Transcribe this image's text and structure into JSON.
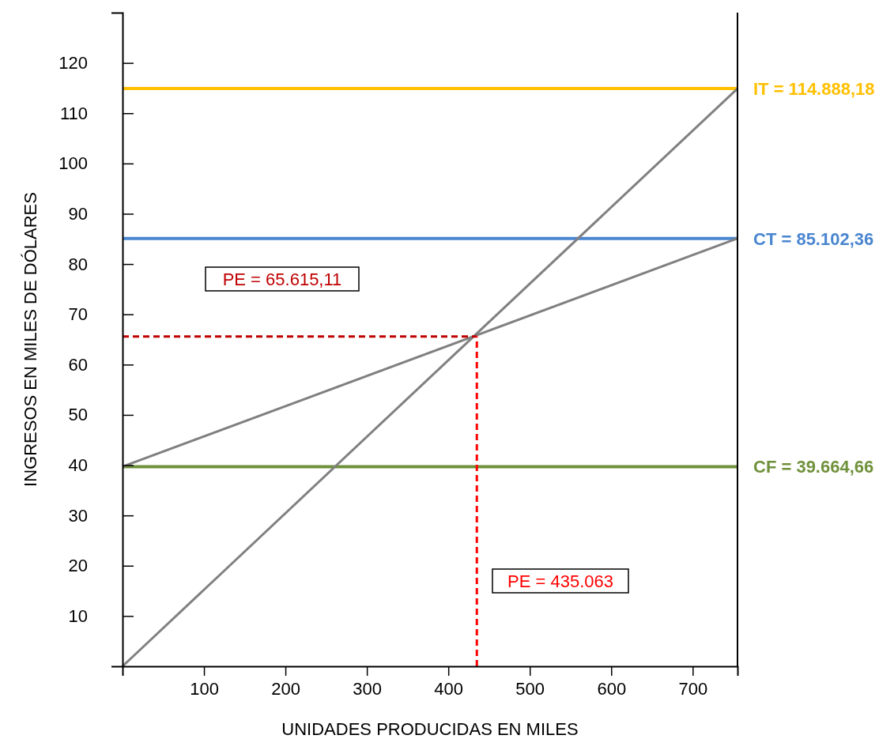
{
  "chart_data": {
    "type": "line",
    "xlabel": "UNIDADES PRODUCIDAS EN MILES",
    "ylabel": "INGRESOS EN MILES DE DÓLARES",
    "xlim": [
      0,
      755
    ],
    "ylim": [
      0,
      130
    ],
    "xticks": [
      100,
      200,
      300,
      400,
      500,
      600,
      700
    ],
    "yticks": [
      10,
      20,
      30,
      40,
      50,
      60,
      70,
      80,
      90,
      100,
      110,
      120
    ],
    "grid": false,
    "marker": "none",
    "series": [
      {
        "color": "#808080",
        "x": [
          0,
          755
        ],
        "values": [
          0,
          114.9
        ]
      },
      {
        "color": "#808080",
        "x": [
          0,
          755
        ],
        "values": [
          39.7,
          85.1
        ]
      },
      {
        "color": "#c00000",
        "x": [
          0,
          435
        ],
        "values": [
          65.6,
          65.6
        ],
        "line_style": "dashed"
      },
      {
        "color": "#ff0000",
        "x": [
          435,
          435
        ],
        "values": [
          0,
          65.6
        ],
        "line_style": "dashed"
      }
    ],
    "ref_lines": [
      {
        "axis": "y",
        "value": 114.9,
        "color": "#ffc000"
      },
      {
        "axis": "y",
        "value": 85.1,
        "color": "#4a86d0"
      },
      {
        "axis": "y",
        "value": 39.7,
        "color": "#70913c"
      }
    ],
    "annotations": [
      "IT = 114.888,18",
      "CT = 85.102,36",
      "CF = 39.664,66",
      "PE = 65.615,11",
      "PE = 435.063"
    ]
  }
}
